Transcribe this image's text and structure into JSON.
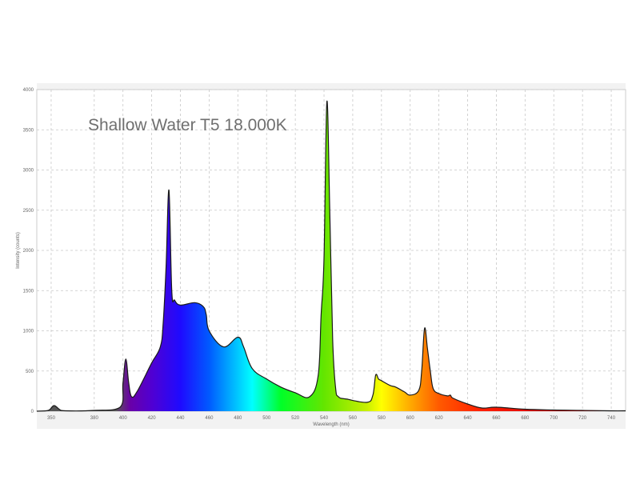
{
  "chart_data": {
    "type": "area",
    "annotation": "Shallow Water T5  18.000K",
    "xlabel": "Wavelength (nm)",
    "ylabel": "Intensity (counts)",
    "xlim": [
      340,
      750
    ],
    "ylim": [
      0,
      4000
    ],
    "x_ticks": [
      350,
      380,
      400,
      420,
      440,
      460,
      480,
      500,
      520,
      540,
      560,
      580,
      600,
      620,
      640,
      660,
      680,
      700,
      720,
      740
    ],
    "y_ticks": [
      0,
      500,
      1000,
      1500,
      2000,
      2500,
      3000,
      3500,
      4000
    ],
    "grid": true,
    "legend": "none",
    "series": [
      {
        "x": [
          340,
          348,
          352,
          356,
          360,
          380,
          398,
          400,
          402,
          404,
          406,
          410,
          420,
          426,
          428,
          430,
          432,
          434,
          436,
          440,
          450,
          456,
          458,
          460,
          470,
          480,
          484,
          490,
          500,
          510,
          520,
          530,
          536,
          538,
          540,
          542,
          544,
          546,
          548,
          550,
          556,
          570,
          574,
          576,
          578,
          580,
          586,
          590,
          596,
          600,
          606,
          608,
          610,
          612,
          614,
          616,
          620,
          626,
          628,
          630,
          640,
          650,
          660,
          680,
          700,
          720,
          740,
          750
        ],
        "y": [
          0,
          10,
          70,
          20,
          5,
          10,
          50,
          350,
          650,
          350,
          180,
          250,
          600,
          800,
          1100,
          1800,
          2750,
          1500,
          1380,
          1320,
          1350,
          1300,
          1200,
          1000,
          800,
          920,
          800,
          530,
          400,
          300,
          230,
          180,
          450,
          1200,
          1900,
          3850,
          2500,
          900,
          300,
          180,
          150,
          110,
          200,
          450,
          400,
          380,
          320,
          300,
          240,
          200,
          260,
          500,
          1030,
          780,
          500,
          280,
          220,
          190,
          200,
          160,
          90,
          40,
          50,
          25,
          15,
          10,
          5,
          5
        ]
      }
    ]
  }
}
